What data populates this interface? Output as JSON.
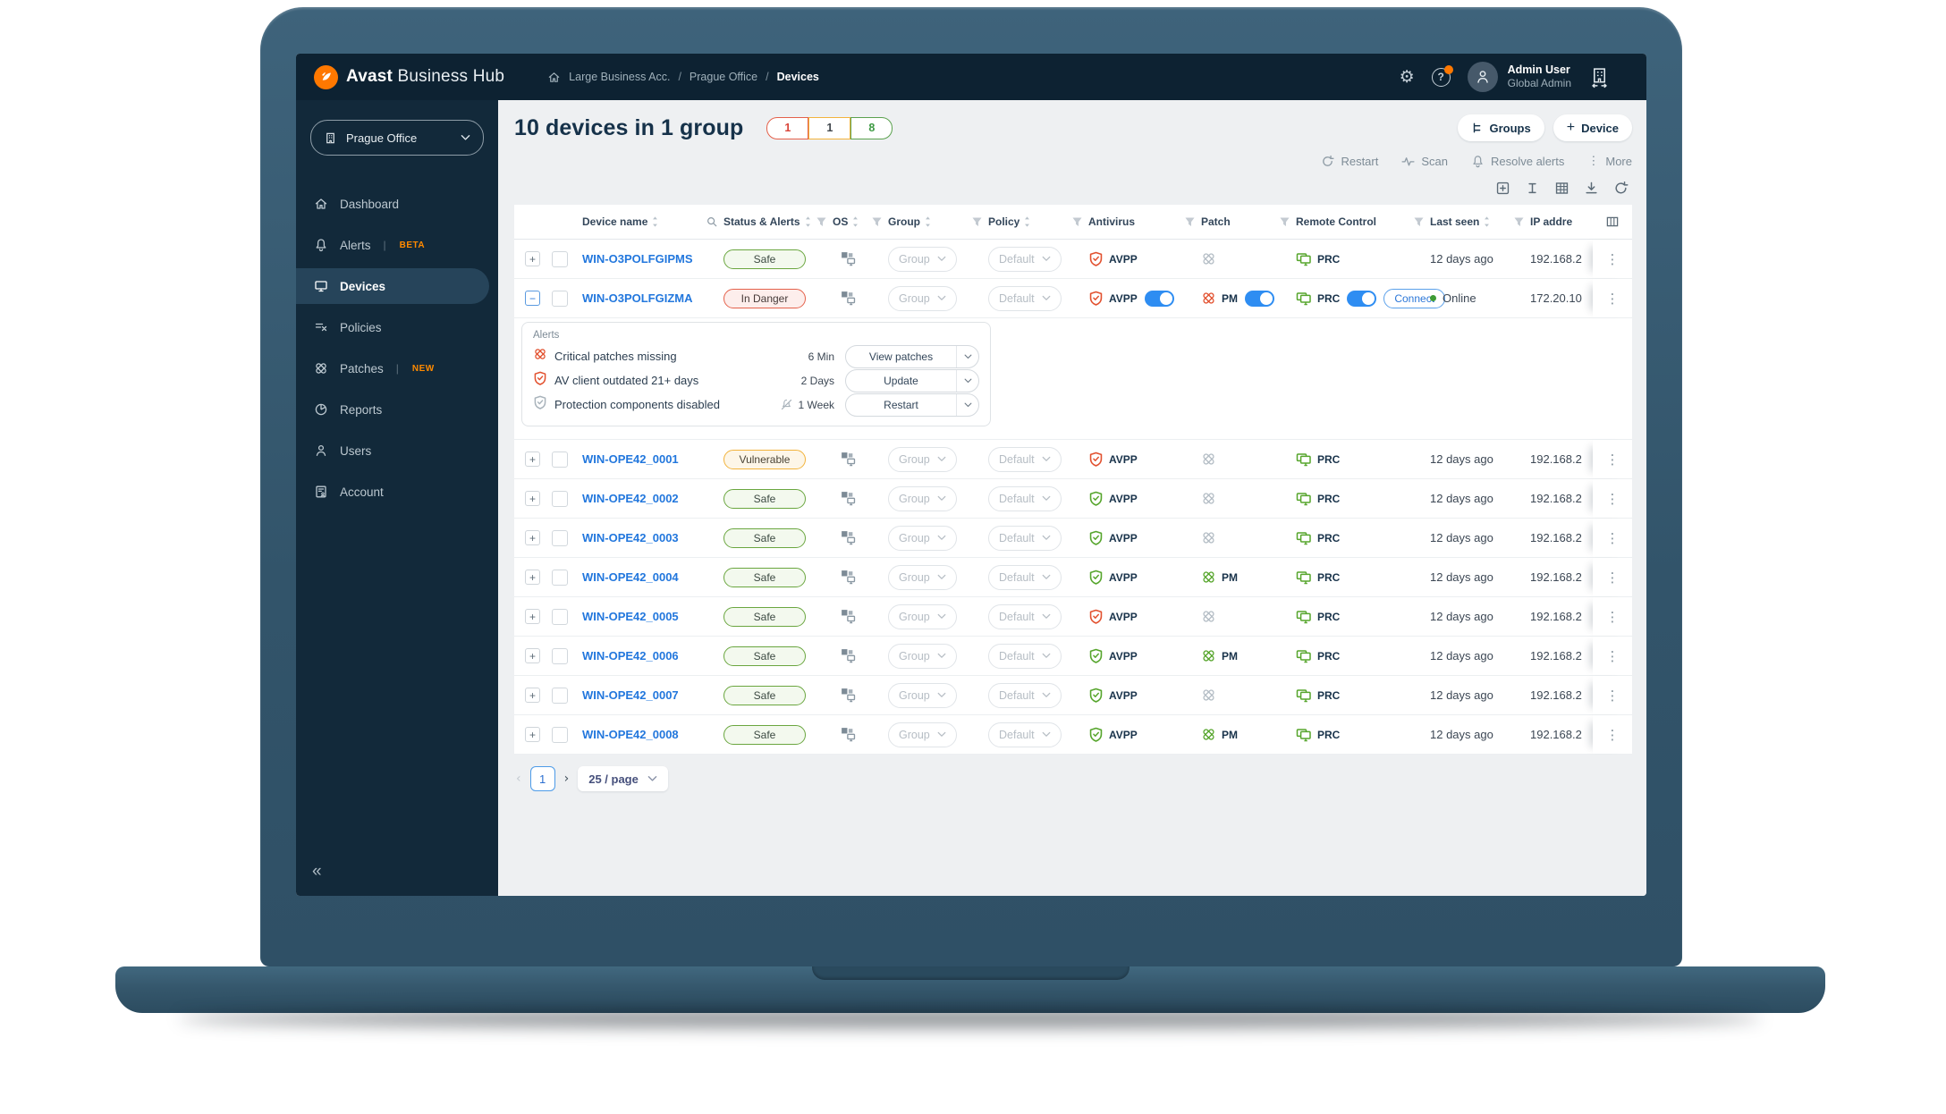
{
  "brand": {
    "bold": "Avast",
    "light": "Business Hub"
  },
  "breadcrumb": [
    "Large Business Acc.",
    "Prague Office",
    "Devices"
  ],
  "user": {
    "name": "Admin User",
    "role": "Global Admin"
  },
  "header_icons": [
    "settings-gear-icon",
    "help-icon",
    "avatar",
    "org-switcher-icon"
  ],
  "sidebar": {
    "org_label": "Prague Office",
    "items": [
      {
        "label": "Dashboard",
        "icon": "home",
        "active": false
      },
      {
        "label": "Alerts",
        "icon": "bell",
        "badge": "BETA",
        "active": false
      },
      {
        "label": "Devices",
        "icon": "monitor",
        "active": true
      },
      {
        "label": "Policies",
        "icon": "policies",
        "active": false
      },
      {
        "label": "Patches",
        "icon": "patch",
        "badge": "NEW",
        "active": false
      },
      {
        "label": "Reports",
        "icon": "pie",
        "active": false
      },
      {
        "label": "Users",
        "icon": "person",
        "active": false
      },
      {
        "label": "Account",
        "icon": "account",
        "active": false
      }
    ],
    "collapse_glyph": "«"
  },
  "main": {
    "title": "10 devices in 1 group",
    "summary": [
      {
        "value": "1",
        "color": "#e4604a",
        "text": "#d9453a",
        "meaning": "in-danger"
      },
      {
        "value": "1",
        "color": "#f2b33c",
        "text": "#41474d",
        "meaning": "vulnerable"
      },
      {
        "value": "8",
        "color": "#5aa14e",
        "text": "#3d9a43",
        "meaning": "safe"
      }
    ],
    "actions": {
      "groups_label": "Groups",
      "device_label": "Device",
      "device_plus": "+"
    },
    "toolbar": [
      {
        "icon": "refresh",
        "label": "Restart"
      },
      {
        "icon": "scan",
        "label": "Scan"
      },
      {
        "icon": "bell",
        "label": "Resolve alerts"
      },
      {
        "icon": "dots",
        "label": "More"
      }
    ],
    "view_icons": [
      "add-box-icon",
      "column-width-icon",
      "table-grid-icon",
      "download-icon",
      "reload-icon"
    ]
  },
  "table": {
    "columns": [
      {
        "label": "Device name",
        "sort": true,
        "search": true
      },
      {
        "label": "Status & Alerts",
        "sort": true,
        "funnel": true
      },
      {
        "label": "OS",
        "sort": true,
        "funnel": true
      },
      {
        "label": "Group",
        "sort": true,
        "funnel": true
      },
      {
        "label": "Policy",
        "sort": true,
        "funnel": true
      },
      {
        "label": "Antivirus",
        "funnel": true
      },
      {
        "label": "Patch",
        "funnel": true
      },
      {
        "label": "Remote Control",
        "funnel": true
      },
      {
        "label": "Last seen",
        "sort": true,
        "funnel": true
      },
      {
        "label": "IP addre"
      },
      {
        "label": "",
        "columns_icon": true
      }
    ],
    "rows": [
      {
        "name": "WIN-O3POLFGIPMS",
        "status": "Safe",
        "status_type": "safe",
        "group": "Group",
        "policy": "Default",
        "av": {
          "label": "AVPP",
          "state": "alert",
          "toggle": false
        },
        "patch": {
          "label": "",
          "state": "off",
          "toggle": false
        },
        "remote": {
          "label": "PRC",
          "toggle": false,
          "connect": false
        },
        "last_seen": "12 days ago",
        "online": false,
        "ip": "192.168.2",
        "expanded": false
      },
      {
        "name": "WIN-O3POLFGIZMA",
        "status": "In Danger",
        "status_type": "danger",
        "group": "Group",
        "policy": "Default",
        "av": {
          "label": "AVPP",
          "state": "alert",
          "toggle": true
        },
        "patch": {
          "label": "PM",
          "state": "alert",
          "toggle": true
        },
        "remote": {
          "label": "PRC",
          "toggle": true,
          "connect": true
        },
        "last_seen": "Online",
        "online": true,
        "ip": "172.20.10",
        "expanded": true
      },
      {
        "name": "WIN-OPE42_0001",
        "status": "Vulnerable",
        "status_type": "vulnerable",
        "group": "Group",
        "policy": "Default",
        "av": {
          "label": "AVPP",
          "state": "alert",
          "toggle": false
        },
        "patch": {
          "label": "",
          "state": "off",
          "toggle": false
        },
        "remote": {
          "label": "PRC",
          "toggle": false,
          "connect": false
        },
        "last_seen": "12 days ago",
        "online": false,
        "ip": "192.168.2",
        "expanded": false
      },
      {
        "name": "WIN-OPE42_0002",
        "status": "Safe",
        "status_type": "safe",
        "group": "Group",
        "policy": "Default",
        "av": {
          "label": "AVPP",
          "state": "ok",
          "toggle": false
        },
        "patch": {
          "label": "",
          "state": "off",
          "toggle": false
        },
        "remote": {
          "label": "PRC",
          "toggle": false,
          "connect": false
        },
        "last_seen": "12 days ago",
        "online": false,
        "ip": "192.168.2",
        "expanded": false
      },
      {
        "name": "WIN-OPE42_0003",
        "status": "Safe",
        "status_type": "safe",
        "group": "Group",
        "policy": "Default",
        "av": {
          "label": "AVPP",
          "state": "ok",
          "toggle": false
        },
        "patch": {
          "label": "",
          "state": "off",
          "toggle": false
        },
        "remote": {
          "label": "PRC",
          "toggle": false,
          "connect": false
        },
        "last_seen": "12 days ago",
        "online": false,
        "ip": "192.168.2",
        "expanded": false
      },
      {
        "name": "WIN-OPE42_0004",
        "status": "Safe",
        "status_type": "safe",
        "group": "Group",
        "policy": "Default",
        "av": {
          "label": "AVPP",
          "state": "ok",
          "toggle": false
        },
        "patch": {
          "label": "PM",
          "state": "ok",
          "toggle": false
        },
        "remote": {
          "label": "PRC",
          "toggle": false,
          "connect": false
        },
        "last_seen": "12 days ago",
        "online": false,
        "ip": "192.168.2",
        "expanded": false
      },
      {
        "name": "WIN-OPE42_0005",
        "status": "Safe",
        "status_type": "safe",
        "group": "Group",
        "policy": "Default",
        "av": {
          "label": "AVPP",
          "state": "alert",
          "toggle": false
        },
        "patch": {
          "label": "",
          "state": "off",
          "toggle": false
        },
        "remote": {
          "label": "PRC",
          "toggle": false,
          "connect": false
        },
        "last_seen": "12 days ago",
        "online": false,
        "ip": "192.168.2",
        "expanded": false
      },
      {
        "name": "WIN-OPE42_0006",
        "status": "Safe",
        "status_type": "safe",
        "group": "Group",
        "policy": "Default",
        "av": {
          "label": "AVPP",
          "state": "ok",
          "toggle": false
        },
        "patch": {
          "label": "PM",
          "state": "ok",
          "toggle": false
        },
        "remote": {
          "label": "PRC",
          "toggle": false,
          "connect": false
        },
        "last_seen": "12 days ago",
        "online": false,
        "ip": "192.168.2",
        "expanded": false
      },
      {
        "name": "WIN-OPE42_0007",
        "status": "Safe",
        "status_type": "safe",
        "group": "Group",
        "policy": "Default",
        "av": {
          "label": "AVPP",
          "state": "ok",
          "toggle": false
        },
        "patch": {
          "label": "",
          "state": "off",
          "toggle": false
        },
        "remote": {
          "label": "PRC",
          "toggle": false,
          "connect": false
        },
        "last_seen": "12 days ago",
        "online": false,
        "ip": "192.168.2",
        "expanded": false
      },
      {
        "name": "WIN-OPE42_0008",
        "status": "Safe",
        "status_type": "safe",
        "group": "Group",
        "policy": "Default",
        "av": {
          "label": "AVPP",
          "state": "ok",
          "toggle": false
        },
        "patch": {
          "label": "PM",
          "state": "ok",
          "toggle": false
        },
        "remote": {
          "label": "PRC",
          "toggle": false,
          "connect": false
        },
        "last_seen": "12 days ago",
        "online": false,
        "ip": "192.168.2",
        "expanded": false
      }
    ]
  },
  "alerts": {
    "title": "Alerts",
    "items": [
      {
        "icon": "patch-alert-icon",
        "text": "Critical patches missing",
        "age": "6 Min",
        "action": "View patches",
        "muted": false
      },
      {
        "icon": "shield-alert-icon",
        "text": "AV client outdated 21+ days",
        "age": "2 Days",
        "action": "Update",
        "muted": false
      },
      {
        "icon": "shield-muted-icon",
        "text": "Protection components disabled",
        "age": "1 Week",
        "action": "Restart",
        "muted": true
      }
    ]
  },
  "pagination": {
    "page": "1",
    "page_size": "25 / page",
    "prev_glyph": "‹",
    "next_glyph": "›"
  }
}
